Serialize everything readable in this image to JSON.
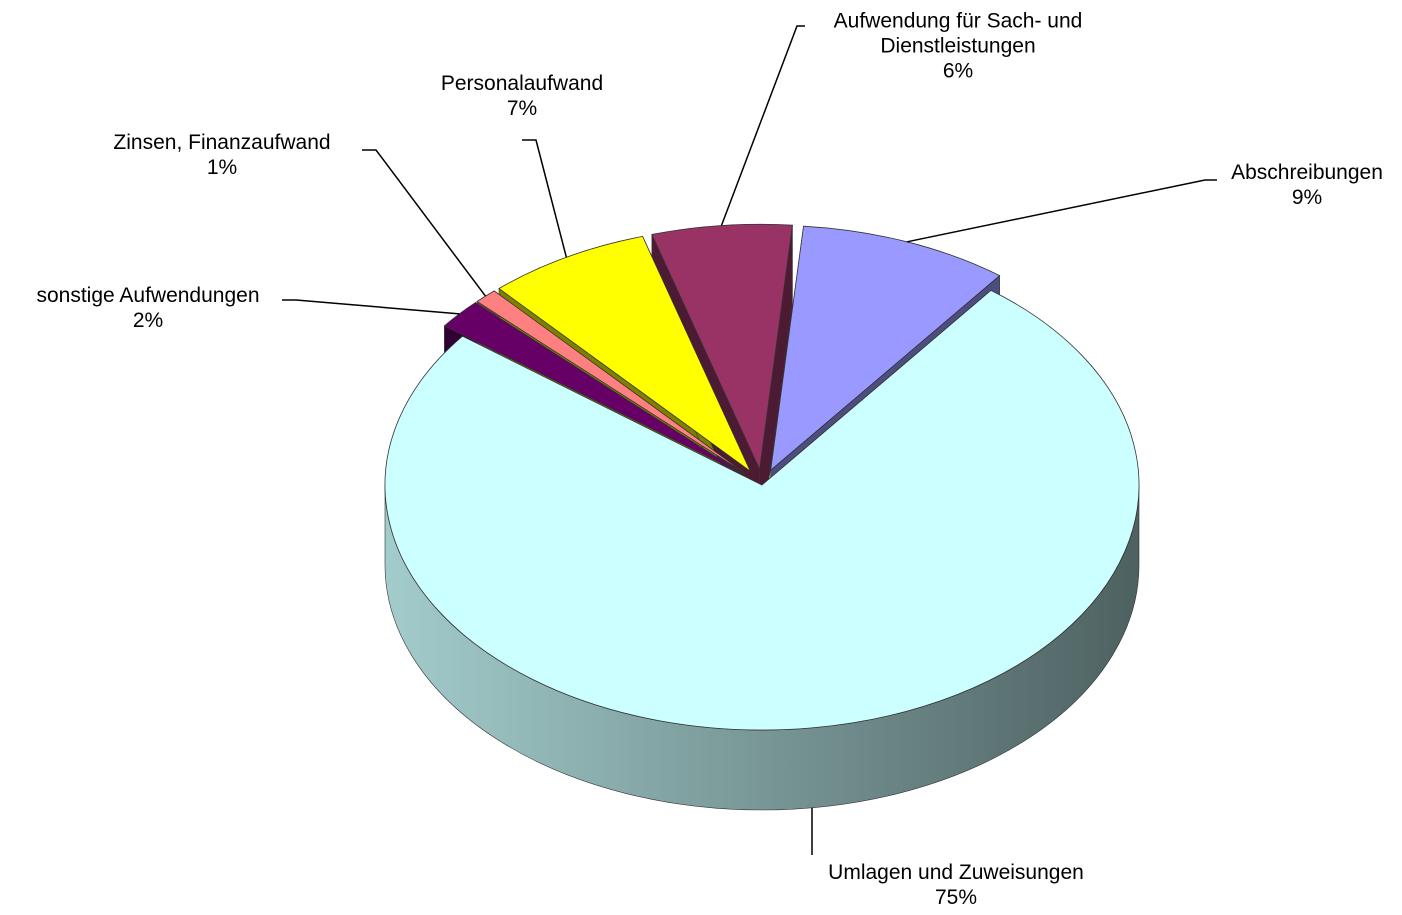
{
  "chart_data": {
    "type": "pie",
    "categories": [
      "Abschreibungen",
      "Umlagen und Zuweisungen",
      "sonstige Aufwendungen",
      "Zinsen, Finanzaufwand",
      "Personalaufwand",
      "Aufwendung für Sach- und Dienstleistungen"
    ],
    "values": [
      9,
      75,
      2,
      1,
      7,
      6
    ],
    "value_labels": [
      "9%",
      "75%",
      "2%",
      "1%",
      "7%",
      "6%"
    ],
    "colors": [
      "#9999ff",
      "#ccffff",
      "#660066",
      "#ff8080",
      "#ffff00",
      "#993366"
    ]
  }
}
